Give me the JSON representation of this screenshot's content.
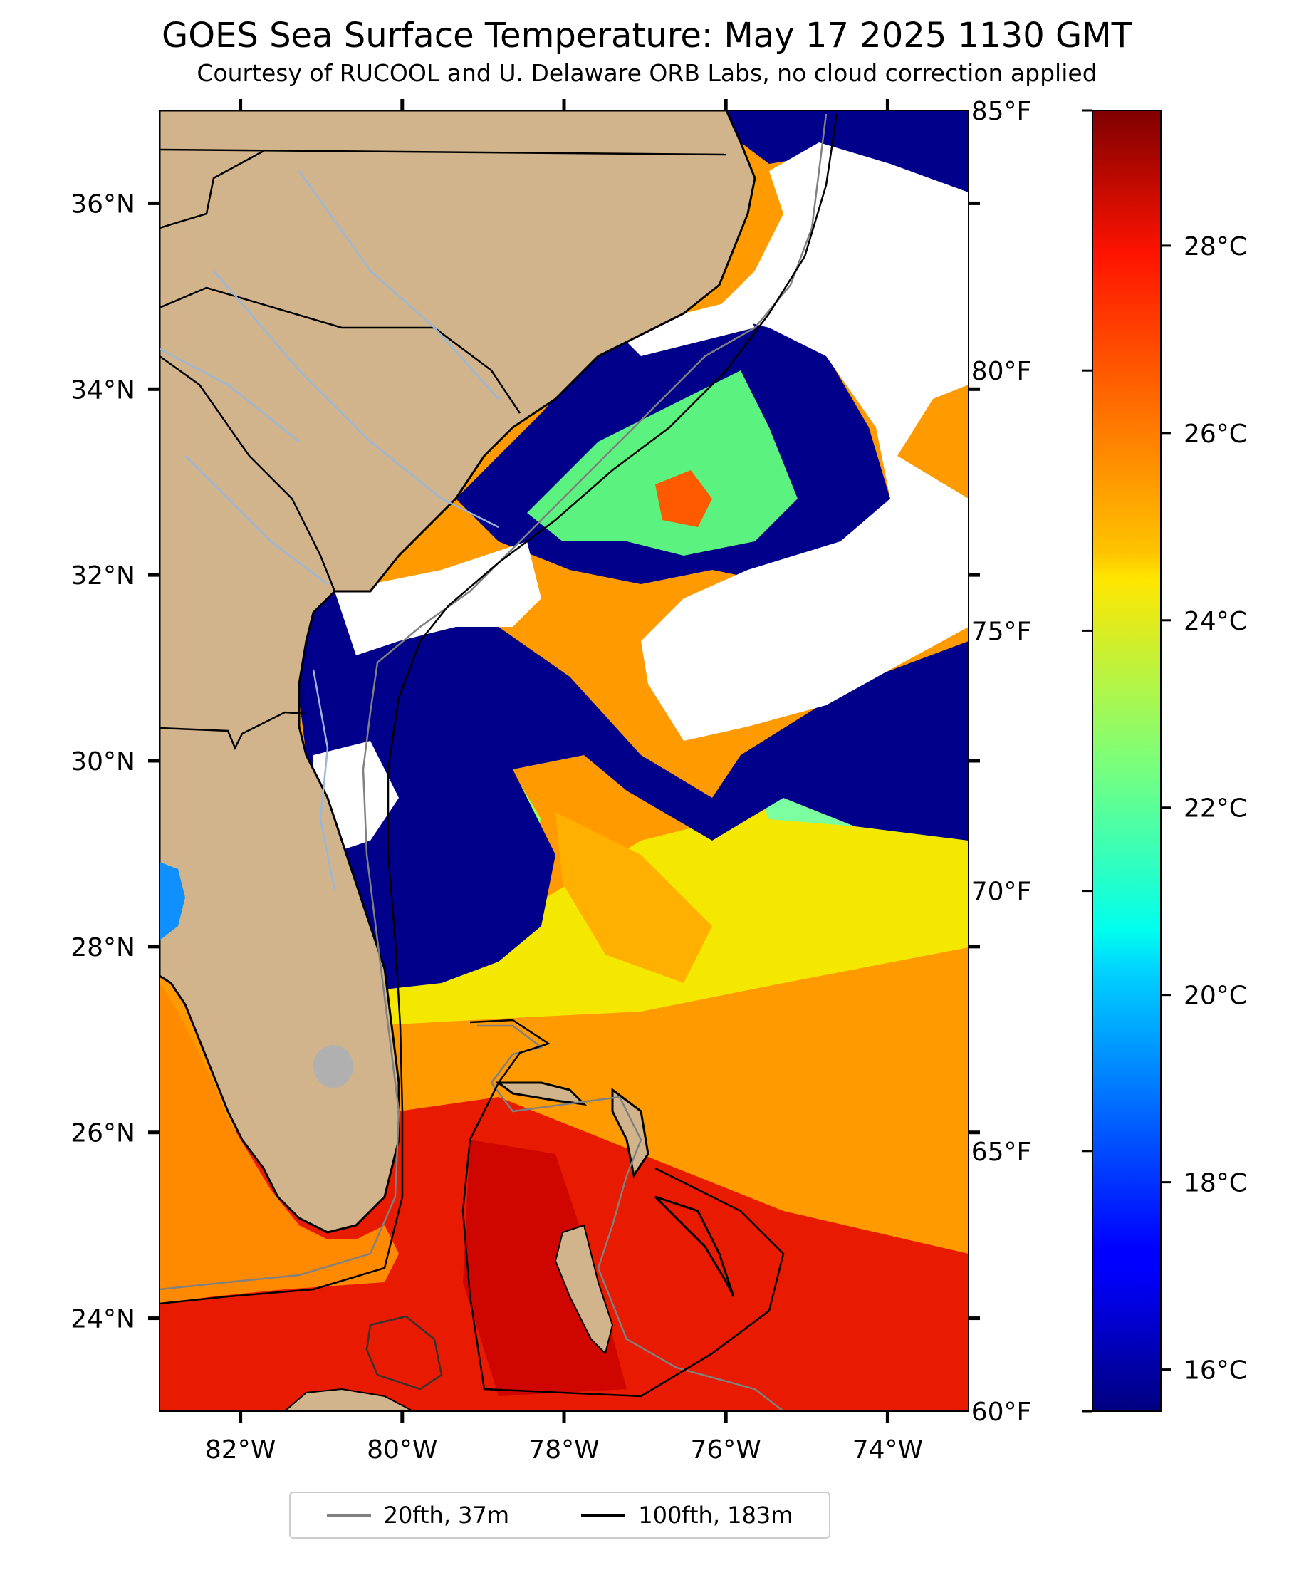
{
  "title": "GOES Sea Surface Temperature: May 17 2025 1130 GMT",
  "subtitle": "Courtesy of RUCOOL and U. Delaware ORB Labs, no cloud correction applied",
  "map": {
    "lon_range": [
      -83.0,
      -73.0
    ],
    "lat_range": [
      23.0,
      37.0
    ],
    "lat_ticks": [
      {
        "value": 36,
        "label": "36°N"
      },
      {
        "value": 34,
        "label": "34°N"
      },
      {
        "value": 32,
        "label": "32°N"
      },
      {
        "value": 30,
        "label": "30°N"
      },
      {
        "value": 28,
        "label": "28°N"
      },
      {
        "value": 26,
        "label": "26°N"
      },
      {
        "value": 24,
        "label": "24°N"
      }
    ],
    "lon_ticks": [
      {
        "value": -82,
        "label": "82°W"
      },
      {
        "value": -80,
        "label": "80°W"
      },
      {
        "value": -78,
        "label": "78°W"
      },
      {
        "value": -76,
        "label": "76°W"
      },
      {
        "value": -74,
        "label": "74°W"
      }
    ],
    "land_color": "#d2b48c",
    "cloud_color": "#ffffff"
  },
  "colorbar": {
    "colormap": "jet",
    "f_range": [
      60,
      85
    ],
    "f_ticks": [
      {
        "value": 85,
        "label": "85°F"
      },
      {
        "value": 80,
        "label": "80°F"
      },
      {
        "value": 75,
        "label": "75°F"
      },
      {
        "value": 70,
        "label": "70°F"
      },
      {
        "value": 65,
        "label": "65°F"
      },
      {
        "value": 60,
        "label": "60°F"
      }
    ],
    "c_ticks": [
      {
        "value": 28,
        "label": "28°C"
      },
      {
        "value": 26,
        "label": "26°C"
      },
      {
        "value": 24,
        "label": "24°C"
      },
      {
        "value": 22,
        "label": "22°C"
      },
      {
        "value": 20,
        "label": "20°C"
      },
      {
        "value": 18,
        "label": "18°C"
      },
      {
        "value": 16,
        "label": "16°C"
      }
    ]
  },
  "legend": [
    {
      "label": "20fth, 37m",
      "color": "#808080"
    },
    {
      "label": "100fth, 183m",
      "color": "#000000"
    }
  ]
}
